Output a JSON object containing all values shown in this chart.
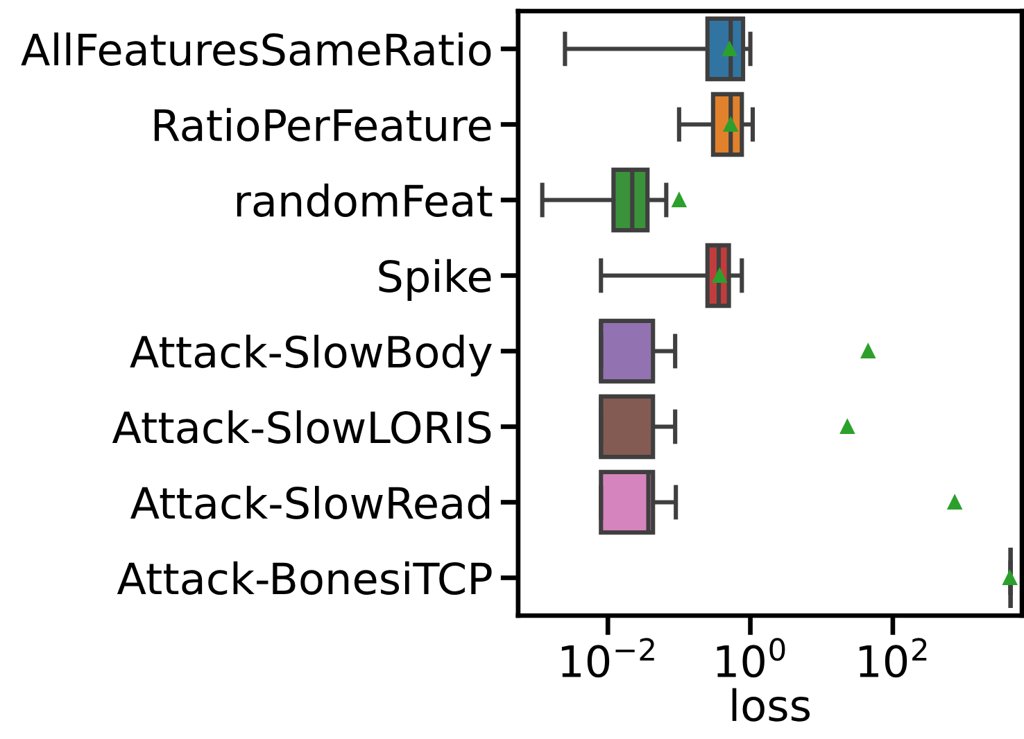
{
  "chart_data": {
    "type": "box",
    "orientation": "horizontal",
    "log": "x",
    "grid": false,
    "xlabel": "loss",
    "categories": [
      "AllFeaturesSameRatio",
      "RatioPerFeature",
      "randomFeat",
      "Spike",
      "Attack-SlowBody",
      "Attack-SlowLORIS",
      "Attack-SlowRead",
      "Attack-BonesiTCP"
    ],
    "boxes": [
      {
        "low": 0.0025,
        "q1": 0.25,
        "median": 0.53,
        "q3": 0.79,
        "high": 1.0,
        "mean": 0.51
      },
      {
        "low": 0.1,
        "q1": 0.3,
        "median": 0.53,
        "q3": 0.76,
        "high": 1.08,
        "mean": 0.53
      },
      {
        "low": 0.0012,
        "q1": 0.012,
        "median": 0.022,
        "q3": 0.036,
        "high": 0.066,
        "mean": 0.1
      },
      {
        "low": 0.008,
        "q1": 0.25,
        "median": 0.36,
        "q3": 0.5,
        "high": 0.76,
        "mean": 0.37
      },
      {
        "low": 0.008,
        "q1": 0.008,
        "median": 0.008,
        "q3": 0.043,
        "high": 0.088,
        "mean": 45
      },
      {
        "low": 0.008,
        "q1": 0.008,
        "median": 0.008,
        "q3": 0.043,
        "high": 0.088,
        "mean": 23
      },
      {
        "low": 0.008,
        "q1": 0.008,
        "median": 0.037,
        "q3": 0.043,
        "high": 0.09,
        "mean": 740
      },
      {
        "low": 4500,
        "q1": 4500,
        "median": 4500,
        "q3": 4500,
        "high": 4500,
        "mean": 4400
      }
    ],
    "colors": [
      "#3274a1",
      "#e1812c",
      "#3a923a",
      "#c03d3e",
      "#9372b2",
      "#845b53",
      "#d684bd",
      null
    ],
    "xlim": [
      0.00055,
      6500
    ],
    "xticks": [
      {
        "value": 0.01,
        "label": "10$^{−2}$"
      },
      {
        "value": 1,
        "label": "10$^{0}$"
      },
      {
        "value": 100,
        "label": "10$^{2}$"
      }
    ]
  }
}
